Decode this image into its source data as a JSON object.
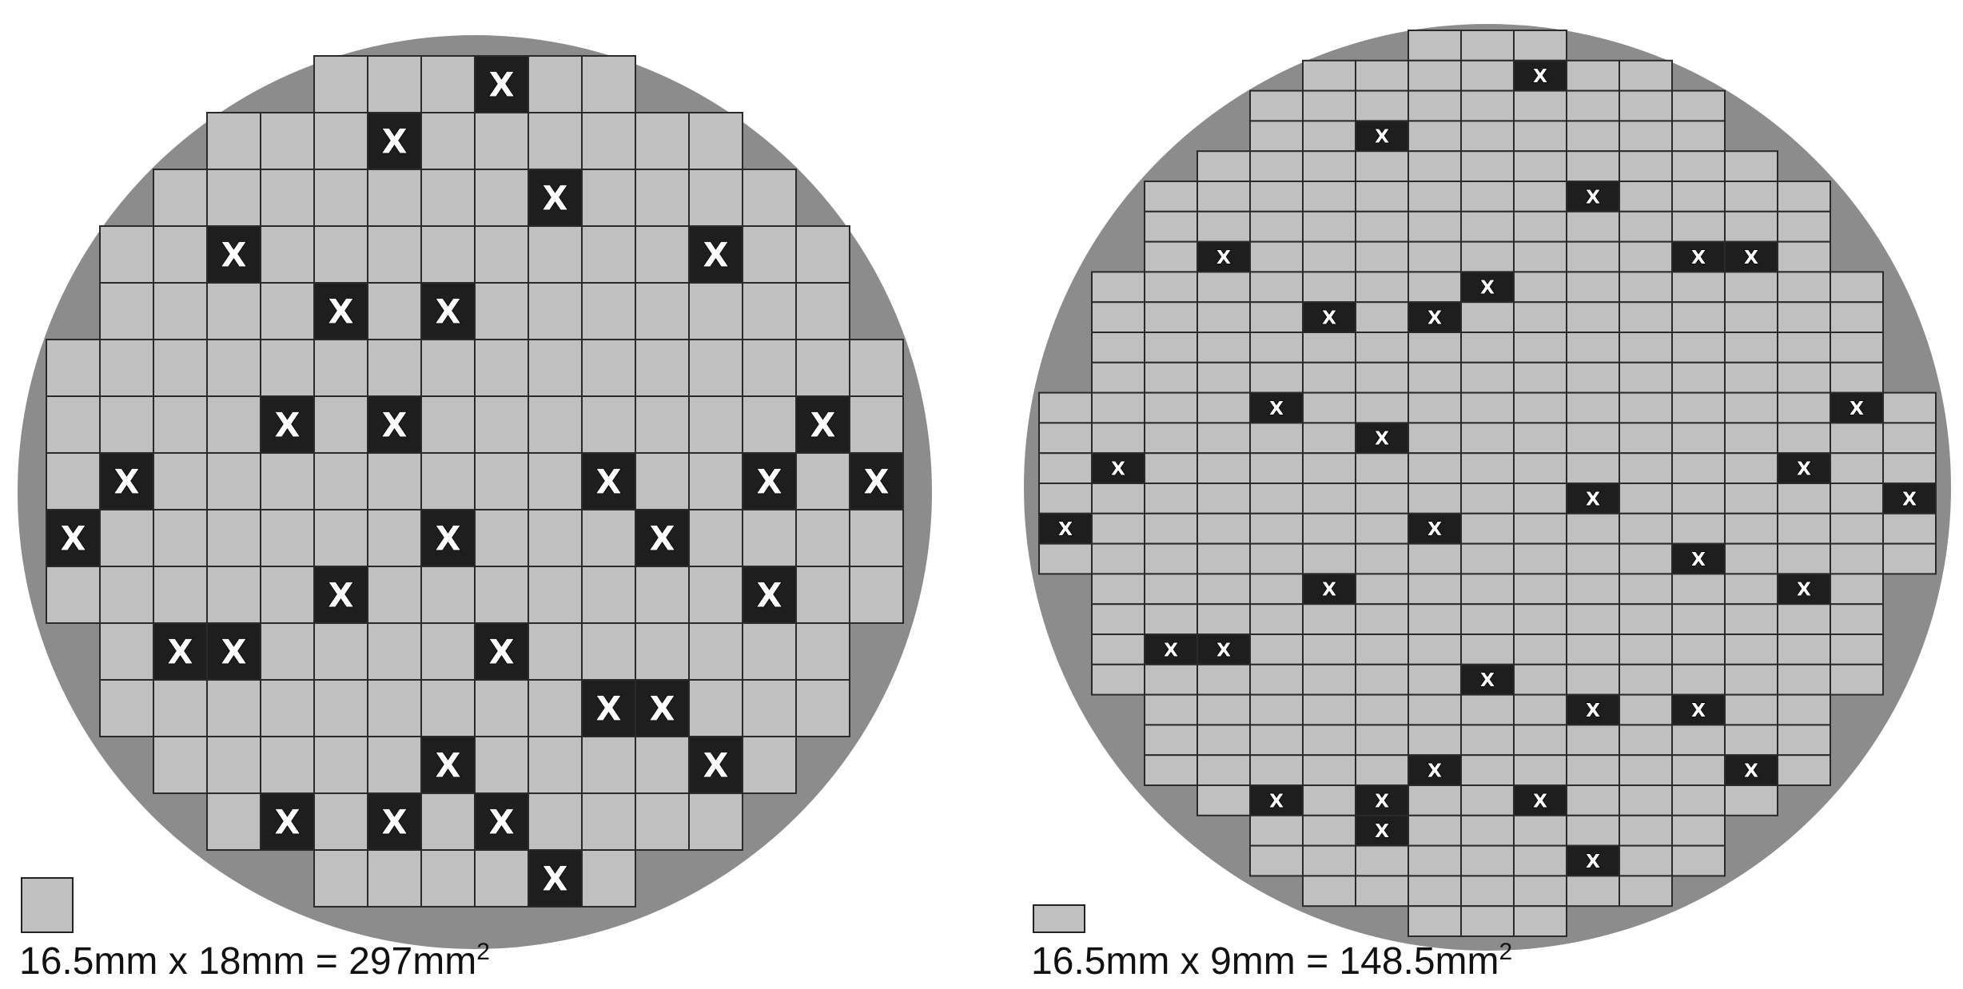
{
  "colors": {
    "wafer": "#8c8c8c",
    "good_die": "#c0c0c0",
    "defect_die": "#1e1e1e",
    "grid_line": "#2a2a2a",
    "defect_mark": "#ffffff"
  },
  "defect_marker": "X",
  "wafers": [
    {
      "name": "large-die-wafer",
      "die_grid": {
        "columns": 16,
        "rows": 15
      },
      "die_dimensions": "16.5mm x 18mm = 297mm",
      "area_exponent": "2",
      "die_rows": [
        {
          "start": 5,
          "count": 6
        },
        {
          "start": 3,
          "count": 10
        },
        {
          "start": 2,
          "count": 12
        },
        {
          "start": 1,
          "count": 14
        },
        {
          "start": 1,
          "count": 14
        },
        {
          "start": 0,
          "count": 16
        },
        {
          "start": 0,
          "count": 16
        },
        {
          "start": 0,
          "count": 16
        },
        {
          "start": 0,
          "count": 16
        },
        {
          "start": 0,
          "count": 16
        },
        {
          "start": 1,
          "count": 14
        },
        {
          "start": 1,
          "count": 14
        },
        {
          "start": 2,
          "count": 12
        },
        {
          "start": 3,
          "count": 10
        },
        {
          "start": 5,
          "count": 6
        }
      ],
      "defect_dies": [
        [
          0,
          8
        ],
        [
          1,
          6
        ],
        [
          2,
          9
        ],
        [
          3,
          3
        ],
        [
          3,
          12
        ],
        [
          4,
          5
        ],
        [
          4,
          7
        ],
        [
          6,
          4
        ],
        [
          6,
          6
        ],
        [
          6,
          14
        ],
        [
          7,
          1
        ],
        [
          7,
          10
        ],
        [
          7,
          13
        ],
        [
          7,
          15
        ],
        [
          8,
          0
        ],
        [
          8,
          7
        ],
        [
          8,
          11
        ],
        [
          9,
          5
        ],
        [
          9,
          13
        ],
        [
          10,
          2
        ],
        [
          10,
          3
        ],
        [
          10,
          8
        ],
        [
          11,
          10
        ],
        [
          11,
          11
        ],
        [
          12,
          7
        ],
        [
          12,
          12
        ],
        [
          13,
          4
        ],
        [
          13,
          6
        ],
        [
          13,
          8
        ],
        [
          14,
          9
        ]
      ]
    },
    {
      "name": "small-die-wafer",
      "die_grid": {
        "columns": 17,
        "rows": 30
      },
      "die_dimensions": "16.5mm x 9mm = 148.5mm",
      "area_exponent": "2",
      "die_rows": [
        {
          "start": 7,
          "count": 3
        },
        {
          "start": 5,
          "count": 7
        },
        {
          "start": 4,
          "count": 9
        },
        {
          "start": 4,
          "count": 9
        },
        {
          "start": 3,
          "count": 11
        },
        {
          "start": 2,
          "count": 13
        },
        {
          "start": 2,
          "count": 13
        },
        {
          "start": 2,
          "count": 13
        },
        {
          "start": 1,
          "count": 15
        },
        {
          "start": 1,
          "count": 15
        },
        {
          "start": 1,
          "count": 15
        },
        {
          "start": 1,
          "count": 15
        },
        {
          "start": 0,
          "count": 17
        },
        {
          "start": 0,
          "count": 17
        },
        {
          "start": 0,
          "count": 17
        },
        {
          "start": 0,
          "count": 17
        },
        {
          "start": 0,
          "count": 17
        },
        {
          "start": 0,
          "count": 17
        },
        {
          "start": 1,
          "count": 15
        },
        {
          "start": 1,
          "count": 15
        },
        {
          "start": 1,
          "count": 15
        },
        {
          "start": 1,
          "count": 15
        },
        {
          "start": 2,
          "count": 13
        },
        {
          "start": 2,
          "count": 13
        },
        {
          "start": 2,
          "count": 13
        },
        {
          "start": 3,
          "count": 11
        },
        {
          "start": 4,
          "count": 9
        },
        {
          "start": 4,
          "count": 9
        },
        {
          "start": 5,
          "count": 7
        },
        {
          "start": 7,
          "count": 3
        }
      ],
      "defect_dies": [
        [
          1,
          9
        ],
        [
          3,
          6
        ],
        [
          5,
          10
        ],
        [
          7,
          3
        ],
        [
          7,
          12
        ],
        [
          7,
          13
        ],
        [
          8,
          8
        ],
        [
          9,
          5
        ],
        [
          9,
          7
        ],
        [
          12,
          4
        ],
        [
          13,
          6
        ],
        [
          12,
          15
        ],
        [
          14,
          1
        ],
        [
          14,
          14
        ],
        [
          15,
          10
        ],
        [
          15,
          16
        ],
        [
          16,
          0
        ],
        [
          16,
          7
        ],
        [
          17,
          12
        ],
        [
          18,
          5
        ],
        [
          18,
          14
        ],
        [
          20,
          2
        ],
        [
          20,
          3
        ],
        [
          21,
          8
        ],
        [
          22,
          10
        ],
        [
          22,
          12
        ],
        [
          24,
          7
        ],
        [
          24,
          13
        ],
        [
          25,
          4
        ],
        [
          25,
          6
        ],
        [
          25,
          9
        ],
        [
          26,
          6
        ],
        [
          27,
          10
        ]
      ]
    }
  ]
}
